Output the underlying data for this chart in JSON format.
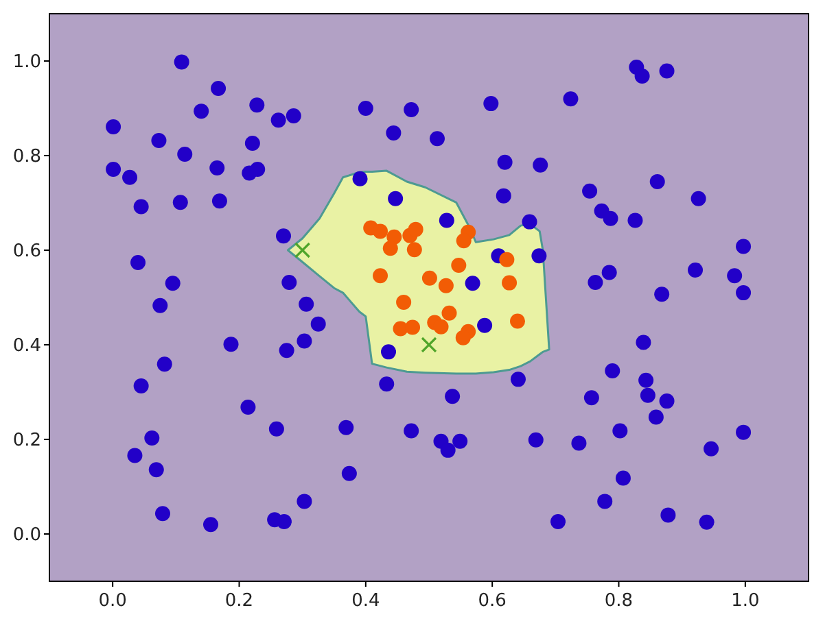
{
  "chart_data": {
    "type": "scatter",
    "grid": false,
    "xlim": [
      -0.1,
      1.1
    ],
    "ylim": [
      -0.1,
      1.1
    ],
    "xticks": [
      {
        "value": 0,
        "label": "0.0"
      },
      {
        "value": 0.2,
        "label": "0.2"
      },
      {
        "value": 0.4,
        "label": "0.4"
      },
      {
        "value": 0.6,
        "label": "0.6"
      },
      {
        "value": 0.8,
        "label": "0.8"
      },
      {
        "value": 1,
        "label": "1.0"
      }
    ],
    "yticks": [
      {
        "value": 0,
        "label": "0.0"
      },
      {
        "value": 0.2,
        "label": "0.2"
      },
      {
        "value": 0.4,
        "label": "0.4"
      },
      {
        "value": 0.6,
        "label": "0.6"
      },
      {
        "value": 0.8,
        "label": "0.8"
      },
      {
        "value": 1,
        "label": "1.0"
      }
    ],
    "series": [
      {
        "type": "area",
        "color": "#e9f2a4",
        "x": [
          0.277,
          0.3,
          0.327,
          0.35,
          0.364,
          0.39,
          0.4,
          0.41,
          0.433,
          0.465,
          0.494,
          0.543,
          0.565,
          0.574,
          0.602,
          0.627,
          0.645,
          0.66,
          0.675,
          0.68,
          0.69
        ],
        "values": [
          null,
          null,
          null,
          null,
          null,
          null,
          null,
          null,
          null,
          null,
          null,
          null,
          null,
          null,
          null,
          null,
          null,
          null,
          null,
          null,
          null
        ],
        "upper": [
          0.6,
          0.625,
          0.667,
          0.72,
          0.754,
          0.765,
          0.766,
          0.766,
          0.768,
          0.745,
          0.733,
          0.701,
          0.646,
          0.617,
          0.623,
          0.632,
          0.652,
          0.655,
          0.64,
          0.6,
          0.39
        ],
        "lower": [
          0.6,
          0.575,
          0.545,
          0.52,
          0.51,
          0.47,
          0.46,
          0.36,
          0.352,
          0.343,
          0.341,
          0.339,
          0.339,
          0.339,
          0.342,
          0.347,
          0.355,
          0.365,
          0.38,
          0.385,
          0.39
        ]
      },
      {
        "marker": "circle",
        "color": "#2200c8",
        "x": [
          0.109,
          0.167,
          0.14,
          0.228,
          0.262,
          0.286,
          0.001,
          0.073,
          0.114,
          0.221,
          0.001,
          0.027,
          0.165,
          0.216,
          0.229,
          0.045,
          0.107,
          0.169,
          0.4,
          0.472,
          0.444,
          0.391,
          0.447,
          0.27,
          0.04,
          0.095,
          0.279,
          0.828,
          0.837,
          0.876,
          0.724,
          0.598,
          0.513,
          0.62,
          0.676,
          0.861,
          0.754,
          0.926,
          0.618,
          0.773,
          0.787,
          0.826,
          0.659,
          0.528,
          0.674,
          0.61,
          0.997,
          0.785,
          0.763,
          0.921,
          0.983,
          0.868,
          0.997,
          0.569,
          0.075,
          0.306,
          0.325,
          0.187,
          0.275,
          0.303,
          0.436,
          0.082,
          0.045,
          0.433,
          0.214,
          0.259,
          0.369,
          0.472,
          0.062,
          0.035,
          0.069,
          0.374,
          0.303,
          0.079,
          0.155,
          0.256,
          0.271,
          0.839,
          0.79,
          0.843,
          0.846,
          0.876,
          0.859,
          0.641,
          0.537,
          0.757,
          0.519,
          0.53,
          0.549,
          0.669,
          0.737,
          0.802,
          0.997,
          0.946,
          0.807,
          0.778,
          0.878,
          0.939,
          0.704,
          0.588
        ],
        "values": [
          0.998,
          0.942,
          0.894,
          0.907,
          0.875,
          0.884,
          0.861,
          0.832,
          0.803,
          0.826,
          0.771,
          0.754,
          0.774,
          0.763,
          0.771,
          0.692,
          0.701,
          0.704,
          0.9,
          0.897,
          0.848,
          0.751,
          0.709,
          0.63,
          0.574,
          0.53,
          0.532,
          0.987,
          0.968,
          0.979,
          0.92,
          0.91,
          0.836,
          0.786,
          0.78,
          0.745,
          0.725,
          0.709,
          0.715,
          0.683,
          0.667,
          0.663,
          0.66,
          0.663,
          0.588,
          0.588,
          0.608,
          0.553,
          0.532,
          0.558,
          0.546,
          0.507,
          0.51,
          0.53,
          0.483,
          0.486,
          0.444,
          0.401,
          0.388,
          0.408,
          0.385,
          0.359,
          0.313,
          0.317,
          0.268,
          0.222,
          0.225,
          0.218,
          0.203,
          0.166,
          0.136,
          0.128,
          0.069,
          0.043,
          0.02,
          0.03,
          0.026,
          0.405,
          0.345,
          0.325,
          0.293,
          0.281,
          0.247,
          0.327,
          0.291,
          0.288,
          0.196,
          0.177,
          0.196,
          0.199,
          0.192,
          0.218,
          0.215,
          0.18,
          0.118,
          0.069,
          0.04,
          0.025,
          0.026,
          0.441
        ]
      },
      {
        "marker": "circle",
        "color": "#f25c05",
        "x": [
          0.408,
          0.423,
          0.445,
          0.439,
          0.47,
          0.479,
          0.477,
          0.562,
          0.555,
          0.423,
          0.501,
          0.547,
          0.527,
          0.46,
          0.532,
          0.509,
          0.519,
          0.455,
          0.474,
          0.562,
          0.554,
          0.64,
          0.623,
          0.627
        ],
        "values": [
          0.647,
          0.64,
          0.628,
          0.604,
          0.631,
          0.644,
          0.601,
          0.638,
          0.62,
          0.546,
          0.541,
          0.568,
          0.525,
          0.49,
          0.467,
          0.447,
          0.438,
          0.434,
          0.437,
          0.428,
          0.415,
          0.45,
          0.58,
          0.531
        ]
      },
      {
        "marker": "cross",
        "color": "#4fa52a",
        "x": [
          0.3,
          0.5
        ],
        "values": [
          0.6,
          0.4
        ]
      }
    ]
  }
}
